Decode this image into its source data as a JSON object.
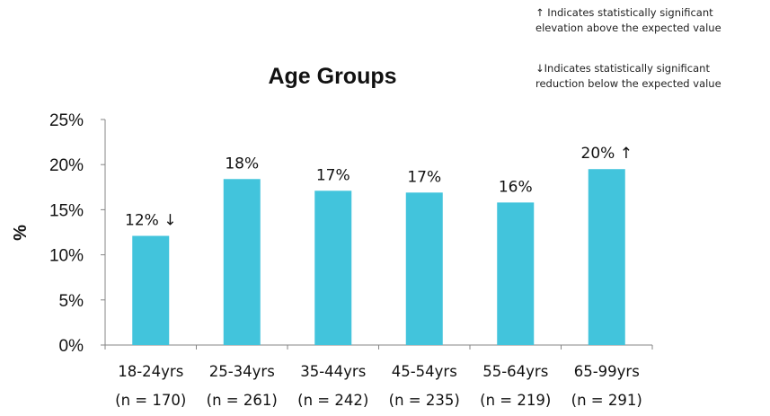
{
  "legend": {
    "up_arrow": "↑",
    "up_line1": "Indicates statistically significant",
    "up_line2": "elevation above the expected value",
    "down_arrow": "↓",
    "down_line1": "Indicates statistically significant",
    "down_line2": "reduction below the expected value"
  },
  "chart_data": {
    "type": "bar",
    "title": "Age Groups",
    "xlabel": "",
    "ylabel": "%",
    "ylim": [
      0,
      25
    ],
    "yticks": [
      "0%",
      "5%",
      "10%",
      "15%",
      "20%",
      "25%"
    ],
    "ytick_values": [
      0,
      5,
      10,
      15,
      20,
      25
    ],
    "bar_color": "#42c4dc",
    "categories": [
      "18-24yrs",
      "25-34yrs",
      "35-44yrs",
      "45-54yrs",
      "55-64yrs",
      "65-99yrs"
    ],
    "sample_sizes": [
      "(n = 170)",
      "(n = 261)",
      "(n = 242)",
      "(n = 235)",
      "(n = 219)",
      "(n = 291)"
    ],
    "values": [
      12.1,
      18.4,
      17.1,
      16.9,
      15.8,
      19.5
    ],
    "data_labels": [
      "12% ↓",
      "18%",
      "17%",
      "17%",
      "16%",
      "20% ↑"
    ],
    "grid": false,
    "legend_position": "top-right"
  }
}
